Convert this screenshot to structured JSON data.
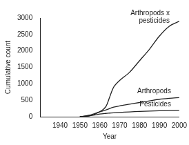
{
  "chart_data": {
    "type": "line",
    "x_label": "Year",
    "y_label": "Cumulative count",
    "xlim": [
      1930,
      2000
    ],
    "xticks": [
      1940,
      1950,
      1960,
      1970,
      1980,
      1990,
      2000
    ],
    "ylim": [
      0,
      3000
    ],
    "yticks": [
      0,
      500,
      1000,
      1500,
      2000,
      2500,
      3000
    ],
    "grid": false,
    "x": [
      1950,
      1955,
      1960,
      1963,
      1965,
      1967,
      1970,
      1975,
      1980,
      1985,
      1990,
      1995,
      2000
    ],
    "series": [
      {
        "name": "Arthropods x pesticides",
        "color": "#222222",
        "values": [
          0,
          30,
          150,
          300,
          600,
          900,
          1100,
          1350,
          1700,
          2050,
          2450,
          2750,
          2900
        ]
      },
      {
        "name": "Arthropods",
        "color": "#222222",
        "values": [
          0,
          50,
          150,
          200,
          250,
          290,
          330,
          380,
          430,
          480,
          530,
          560,
          580
        ]
      },
      {
        "name": "Pesticides",
        "color": "#222222",
        "values": [
          0,
          30,
          80,
          100,
          110,
          120,
          130,
          145,
          160,
          170,
          180,
          185,
          190
        ]
      }
    ]
  }
}
